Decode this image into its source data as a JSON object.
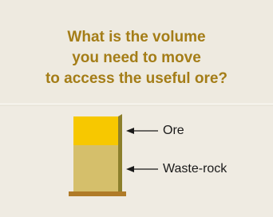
{
  "header": {
    "title_lines": [
      "What is the volume",
      "you need to move",
      "to access the useful ore?"
    ]
  },
  "diagram": {
    "labels": [
      "Ore",
      "Waste-rock"
    ]
  }
}
